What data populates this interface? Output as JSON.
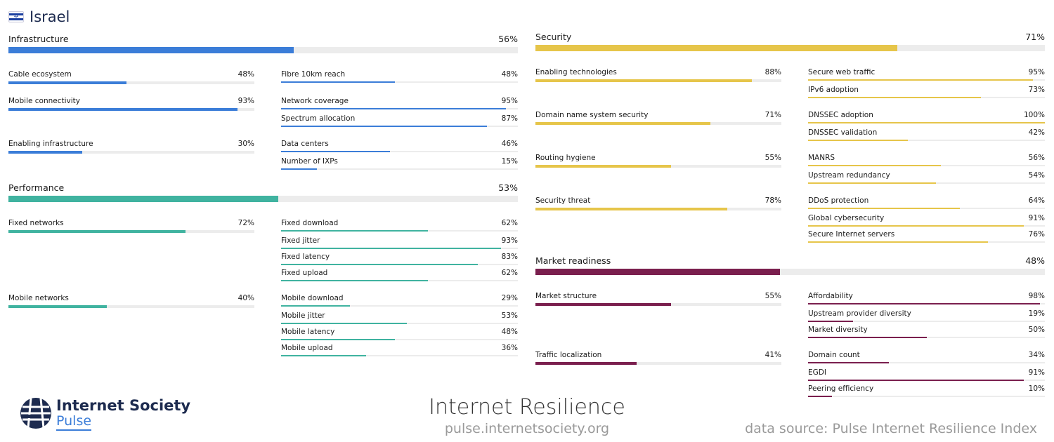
{
  "header": {
    "country": "Israel"
  },
  "colors": {
    "infrastructure": "#3b7dd8",
    "performance": "#40b3a0",
    "security": "#e6c54a",
    "market_readiness": "#7a1f4e"
  },
  "infrastructure": {
    "label": "Infrastructure",
    "value": "56%",
    "score": 56,
    "groups": [
      {
        "label": "Cable ecosystem",
        "value": "48%",
        "score": 48,
        "items": [
          {
            "label": "Fibre 10km reach",
            "value": "48%",
            "score": 48
          }
        ]
      },
      {
        "label": "Mobile connectivity",
        "value": "93%",
        "score": 93,
        "items": [
          {
            "label": "Network coverage",
            "value": "95%",
            "score": 95
          },
          {
            "label": "Spectrum allocation",
            "value": "87%",
            "score": 87
          }
        ]
      },
      {
        "label": "Enabling infrastructure",
        "value": "30%",
        "score": 30,
        "items": [
          {
            "label": "Data centers",
            "value": "46%",
            "score": 46
          },
          {
            "label": "Number of IXPs",
            "value": "15%",
            "score": 15
          }
        ]
      }
    ]
  },
  "performance": {
    "label": "Performance",
    "value": "53%",
    "score": 53,
    "groups": [
      {
        "label": "Fixed networks",
        "value": "72%",
        "score": 72,
        "items": [
          {
            "label": "Fixed download",
            "value": "62%",
            "score": 62
          },
          {
            "label": "Fixed jitter",
            "value": "93%",
            "score": 93
          },
          {
            "label": "Fixed latency",
            "value": "83%",
            "score": 83
          },
          {
            "label": "Fixed upload",
            "value": "62%",
            "score": 62
          }
        ]
      },
      {
        "label": "Mobile networks",
        "value": "40%",
        "score": 40,
        "items": [
          {
            "label": "Mobile download",
            "value": "29%",
            "score": 29
          },
          {
            "label": "Mobile jitter",
            "value": "53%",
            "score": 53
          },
          {
            "label": "Mobile latency",
            "value": "48%",
            "score": 48
          },
          {
            "label": "Mobile upload",
            "value": "36%",
            "score": 36
          }
        ]
      }
    ]
  },
  "security": {
    "label": "Security",
    "value": "71%",
    "score": 71,
    "groups": [
      {
        "label": "Enabling technologies",
        "value": "88%",
        "score": 88,
        "items": [
          {
            "label": "Secure web traffic",
            "value": "95%",
            "score": 95
          },
          {
            "label": "IPv6 adoption",
            "value": "73%",
            "score": 73
          }
        ]
      },
      {
        "label": "Domain name system security",
        "value": "71%",
        "score": 71,
        "items": [
          {
            "label": "DNSSEC adoption",
            "value": "100%",
            "score": 100
          },
          {
            "label": "DNSSEC validation",
            "value": "42%",
            "score": 42
          }
        ]
      },
      {
        "label": "Routing hygiene",
        "value": "55%",
        "score": 55,
        "items": [
          {
            "label": "MANRS",
            "value": "56%",
            "score": 56
          },
          {
            "label": "Upstream redundancy",
            "value": "54%",
            "score": 54
          }
        ]
      },
      {
        "label": "Security threat",
        "value": "78%",
        "score": 78,
        "items": [
          {
            "label": "DDoS protection",
            "value": "64%",
            "score": 64
          },
          {
            "label": "Global cybersecurity",
            "value": "91%",
            "score": 91
          },
          {
            "label": "Secure Internet servers",
            "value": "76%",
            "score": 76
          }
        ]
      }
    ]
  },
  "market_readiness": {
    "label": "Market readiness",
    "value": "48%",
    "score": 48,
    "groups": [
      {
        "label": "Market structure",
        "value": "55%",
        "score": 55,
        "items": [
          {
            "label": "Affordability",
            "value": "98%",
            "score": 98
          },
          {
            "label": "Upstream provider diversity",
            "value": "19%",
            "score": 19
          },
          {
            "label": "Market diversity",
            "value": "50%",
            "score": 50
          }
        ]
      },
      {
        "label": "Traffic localization",
        "value": "41%",
        "score": 41,
        "items": [
          {
            "label": "Domain count",
            "value": "34%",
            "score": 34
          },
          {
            "label": "EGDI",
            "value": "91%",
            "score": 91
          },
          {
            "label": "Peering efficiency",
            "value": "10%",
            "score": 10
          }
        ]
      }
    ]
  },
  "footer": {
    "logo_main": "Internet Society",
    "logo_sub": "Pulse",
    "title": "Internet Resilience",
    "url": "pulse.internetsociety.org",
    "source": "data source: Pulse Internet Resilience Index"
  }
}
